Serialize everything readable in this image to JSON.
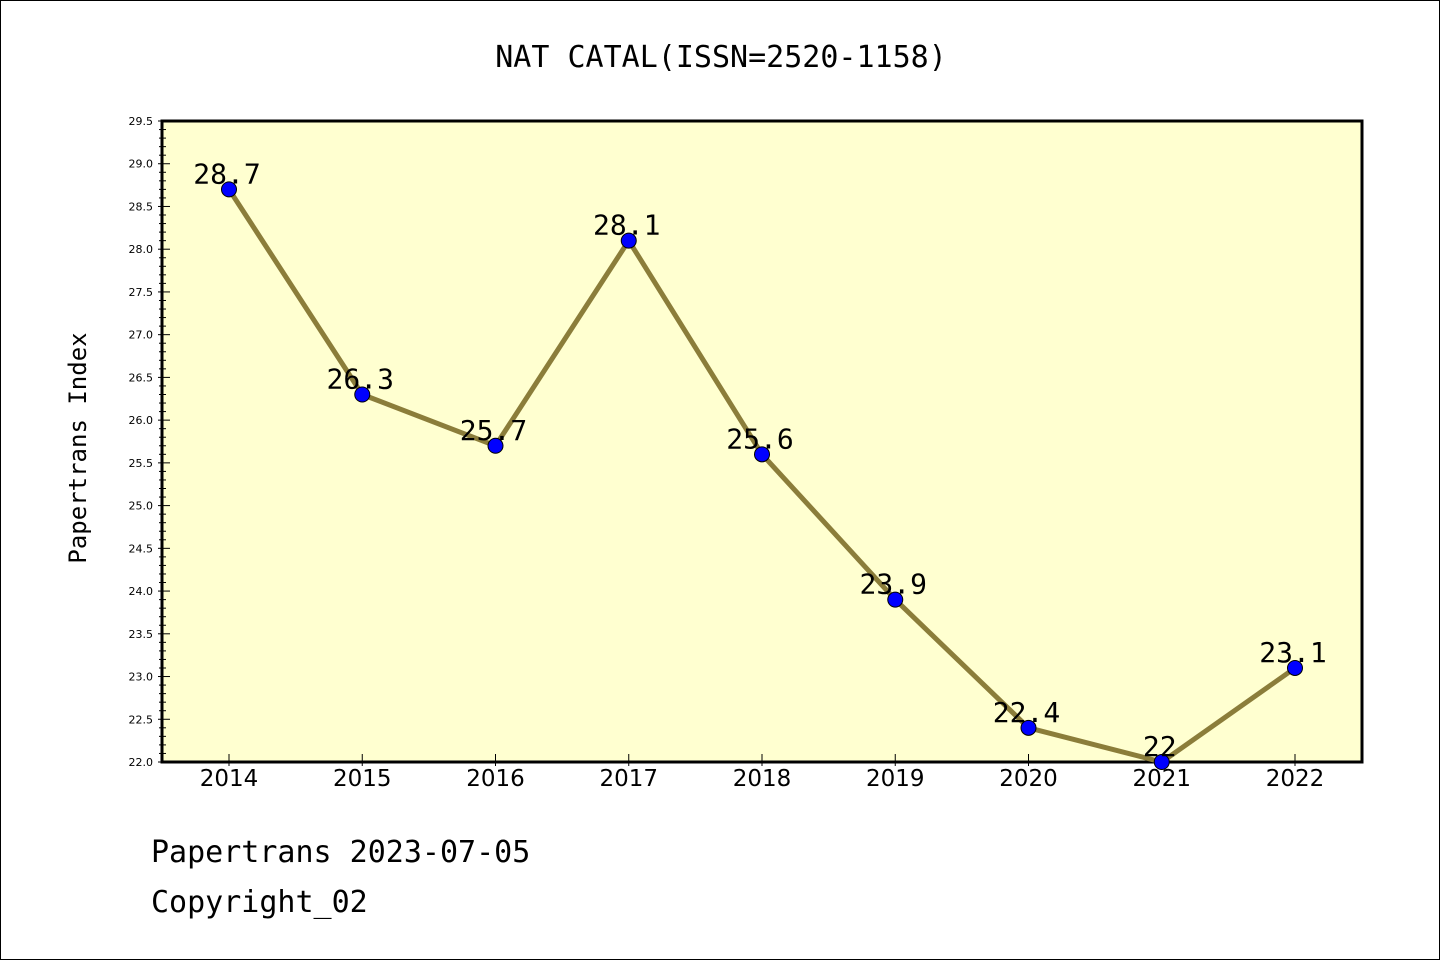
{
  "colors": {
    "plot_bg": "#ffffd0",
    "line": "#8b7d3a",
    "marker": "#0000ff"
  },
  "chart_data": {
    "type": "line",
    "title": "NAT CATAL(ISSN=2520-1158)",
    "xlabel": "",
    "ylabel": "Papertrans Index",
    "categories": [
      "2014",
      "2015",
      "2016",
      "2017",
      "2018",
      "2019",
      "2020",
      "2021",
      "2022"
    ],
    "values": [
      28.7,
      26.3,
      25.7,
      28.1,
      25.6,
      23.9,
      22.4,
      22.0,
      23.1
    ],
    "data_labels": [
      "28.7",
      "26.3",
      "25.7",
      "28.1",
      "25.6",
      "23.9",
      "22.4",
      "22",
      "23.1"
    ],
    "ylim": [
      22.0,
      29.5
    ],
    "yticks": [
      "22.0",
      "22.5",
      "23.0",
      "23.5",
      "24.0",
      "24.5",
      "25.0",
      "25.5",
      "26.0",
      "26.5",
      "27.0",
      "27.5",
      "28.0",
      "28.5",
      "29.0",
      "29.5"
    ],
    "grid": false,
    "legend": "none"
  },
  "footer": {
    "line1": "Papertrans 2023-07-05",
    "line2": "Copyright_02"
  }
}
